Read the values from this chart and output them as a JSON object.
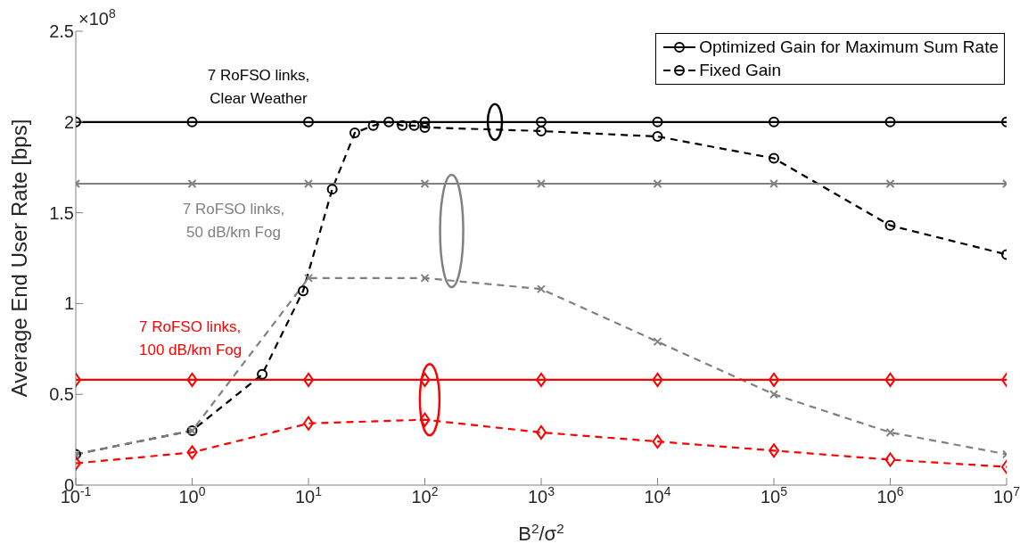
{
  "chart_data": {
    "type": "line",
    "xlabel": "B$^{2}$/σ$^{2}$",
    "ylabel": "Average End User Rate [bps]",
    "annotations": [
      "7 RoFSO links,\nClear Weather",
      "7 RoFSO links,\n50 dB/km Fog",
      "7 RoFSO links,\n100 dB/km Fog",
      "×10$^{8}$"
    ],
    "log": "x",
    "grid": false,
    "legend": "top right",
    "xlim": [
      0.1,
      10000000
    ],
    "ylim": [
      0,
      2.5
    ],
    "xticks": [
      {
        "value": 0.1,
        "label": "10$^{-1}$"
      },
      {
        "value": 1,
        "label": "10$^{0}$"
      },
      {
        "value": 10,
        "label": "10$^{1}$"
      },
      {
        "value": 100,
        "label": "10$^{2}$"
      },
      {
        "value": 1000,
        "label": "10$^{3}$"
      },
      {
        "value": 10000,
        "label": "10$^{4}$"
      },
      {
        "value": 100000,
        "label": "10$^{5}$"
      },
      {
        "value": 1000000,
        "label": "10$^{6}$"
      },
      {
        "value": 10000000,
        "label": "10$^{7}$"
      }
    ],
    "yticks": [
      0,
      0.5,
      1,
      1.5,
      2,
      2.5
    ],
    "series": [
      {
        "name": "Optimized Gain for Maximum Sum Rate",
        "color": "#000000",
        "marker": "circle",
        "line_style": "solid",
        "x": [
          0.1,
          1,
          10,
          100,
          1000,
          10000,
          100000,
          1000000,
          10000000
        ],
        "values": [
          2.0,
          2.0,
          2.0,
          2.0,
          2.0,
          2.0,
          2.0,
          2.0,
          2.0
        ]
      },
      {
        "name": "Fixed Gain",
        "color": "#000000",
        "marker": "circle",
        "line_style": "dashed",
        "x": [
          0.1,
          1,
          4,
          9,
          16,
          25,
          36,
          49,
          64,
          81,
          100,
          1000,
          10000,
          100000,
          1000000,
          10000000
        ],
        "values": [
          0.17,
          0.3,
          0.61,
          1.07,
          1.63,
          1.94,
          1.98,
          2.0,
          1.98,
          1.98,
          1.97,
          1.95,
          1.92,
          1.8,
          1.43,
          1.27
        ]
      },
      {
        "color": "#808080",
        "marker": "cross",
        "line_style": "solid",
        "x": [
          0.1,
          1,
          10,
          100,
          1000,
          10000,
          100000,
          1000000,
          10000000
        ],
        "values": [
          1.66,
          1.66,
          1.66,
          1.66,
          1.66,
          1.66,
          1.66,
          1.66,
          1.66
        ]
      },
      {
        "color": "#808080",
        "marker": "cross",
        "line_style": "dashed",
        "x": [
          0.1,
          1,
          10,
          100,
          1000,
          10000,
          100000,
          1000000,
          10000000
        ],
        "values": [
          0.17,
          0.3,
          1.14,
          1.14,
          1.08,
          0.79,
          0.5,
          0.29,
          0.17
        ]
      },
      {
        "color": "#ff0000",
        "marker": "diamond",
        "line_style": "solid",
        "x": [
          0.1,
          1,
          10,
          100,
          1000,
          10000,
          100000,
          1000000,
          10000000
        ],
        "values": [
          0.58,
          0.58,
          0.58,
          0.58,
          0.58,
          0.58,
          0.58,
          0.58,
          0.58
        ]
      },
      {
        "color": "#ff0000",
        "marker": "diamond",
        "line_style": "dashed",
        "x": [
          0.1,
          1,
          10,
          100,
          1000,
          10000,
          100000,
          1000000,
          10000000
        ],
        "values": [
          0.12,
          0.18,
          0.34,
          0.36,
          0.29,
          0.24,
          0.19,
          0.14,
          0.1
        ]
      }
    ]
  }
}
